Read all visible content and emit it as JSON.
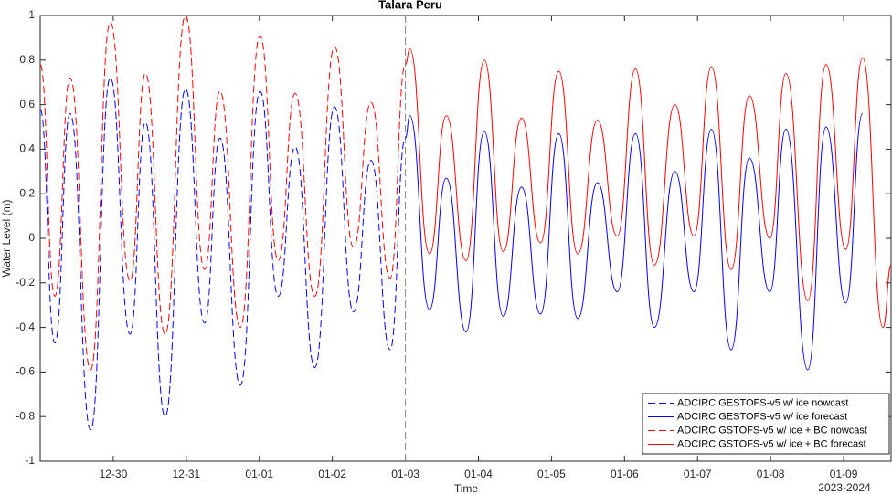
{
  "chart_data": {
    "type": "line",
    "title": "Talara Peru",
    "x_label": "Time",
    "x_sublabel": "2023-2024",
    "y_label": "Water Level (m)",
    "xlim": [
      -1.0,
      10.65
    ],
    "ylim": [
      -1,
      1
    ],
    "xticks": [
      {
        "value": 0,
        "label": "12-30"
      },
      {
        "value": 1,
        "label": "12-31"
      },
      {
        "value": 2,
        "label": "01-01"
      },
      {
        "value": 3,
        "label": "01-02"
      },
      {
        "value": 4,
        "label": "01-03"
      },
      {
        "value": 5,
        "label": "01-04"
      },
      {
        "value": 6,
        "label": "01-05"
      },
      {
        "value": 7,
        "label": "01-06"
      },
      {
        "value": 8,
        "label": "01-07"
      },
      {
        "value": 9,
        "label": "01-08"
      },
      {
        "value": 10,
        "label": "01-09"
      }
    ],
    "yticks": [
      -1,
      -0.8,
      -0.6,
      -0.4,
      -0.2,
      0,
      0.2,
      0.4,
      0.6,
      0.8,
      1
    ],
    "legend": "bottom-right",
    "series": [
      {
        "name": "ADCIRC GESTOFS-v5 w/ ice nowcast",
        "color": "#0000ff",
        "dashed": true,
        "x": [
          -1.0,
          -0.8,
          -0.59,
          -0.31,
          -0.04,
          0.23,
          0.44,
          0.71,
          0.99,
          1.25,
          1.46,
          1.74,
          2.01,
          2.26,
          2.49,
          2.76,
          3.03,
          3.29,
          3.53,
          3.79,
          4.0
        ],
        "values": [
          0.58,
          -0.47,
          0.56,
          -0.86,
          0.72,
          -0.43,
          0.52,
          -0.8,
          0.67,
          -0.38,
          0.45,
          -0.66,
          0.66,
          -0.26,
          0.41,
          -0.58,
          0.59,
          -0.33,
          0.35,
          -0.5,
          0.45
        ]
      },
      {
        "name": "ADCIRC GESTOFS-v5 w/ ice forecast",
        "color": "#0000ff",
        "dashed": false,
        "x": [
          4.0,
          4.06,
          4.33,
          4.56,
          4.83,
          5.08,
          5.34,
          5.59,
          5.85,
          6.1,
          6.36,
          6.63,
          6.9,
          7.15,
          7.41,
          7.69,
          7.95,
          8.19,
          8.46,
          8.71,
          8.99,
          9.21,
          9.51,
          9.76,
          10.03,
          10.26
        ],
        "values": [
          0.45,
          0.55,
          -0.32,
          0.27,
          -0.42,
          0.48,
          -0.35,
          0.23,
          -0.34,
          0.47,
          -0.36,
          0.25,
          -0.24,
          0.47,
          -0.4,
          0.3,
          -0.24,
          0.49,
          -0.5,
          0.36,
          -0.24,
          0.49,
          -0.59,
          0.5,
          -0.29,
          0.56
        ]
      },
      {
        "name": "ADCIRC GSTOFS-v5 w/ ice + BC nowcast",
        "color": "#ff0000",
        "dashed": true,
        "x": [
          -1.0,
          -0.8,
          -0.59,
          -0.31,
          -0.04,
          0.23,
          0.44,
          0.71,
          0.99,
          1.25,
          1.46,
          1.74,
          2.01,
          2.26,
          2.49,
          2.76,
          3.03,
          3.29,
          3.53,
          3.79,
          4.0
        ],
        "values": [
          0.78,
          -0.26,
          0.72,
          -0.59,
          0.97,
          -0.19,
          0.74,
          -0.43,
          1.0,
          -0.14,
          0.66,
          -0.4,
          0.91,
          -0.1,
          0.65,
          -0.26,
          0.86,
          -0.04,
          0.61,
          -0.18,
          0.78
        ]
      },
      {
        "name": "ADCIRC GSTOFS-v5 w/ ice + BC forecast",
        "color": "#ff0000",
        "dashed": false,
        "x": [
          4.0,
          4.06,
          4.33,
          4.56,
          4.83,
          5.08,
          5.34,
          5.59,
          5.85,
          6.1,
          6.36,
          6.63,
          6.9,
          7.15,
          7.41,
          7.69,
          7.95,
          8.19,
          8.46,
          8.71,
          8.99,
          9.21,
          9.51,
          9.76,
          10.03,
          10.26,
          10.54,
          10.65
        ],
        "values": [
          0.78,
          0.85,
          -0.07,
          0.55,
          -0.1,
          0.8,
          -0.06,
          0.54,
          -0.02,
          0.75,
          -0.07,
          0.53,
          0.01,
          0.76,
          -0.12,
          0.6,
          0.01,
          0.77,
          -0.14,
          0.64,
          0.0,
          0.74,
          -0.28,
          0.78,
          -0.05,
          0.81,
          -0.4,
          -0.12
        ]
      }
    ]
  }
}
